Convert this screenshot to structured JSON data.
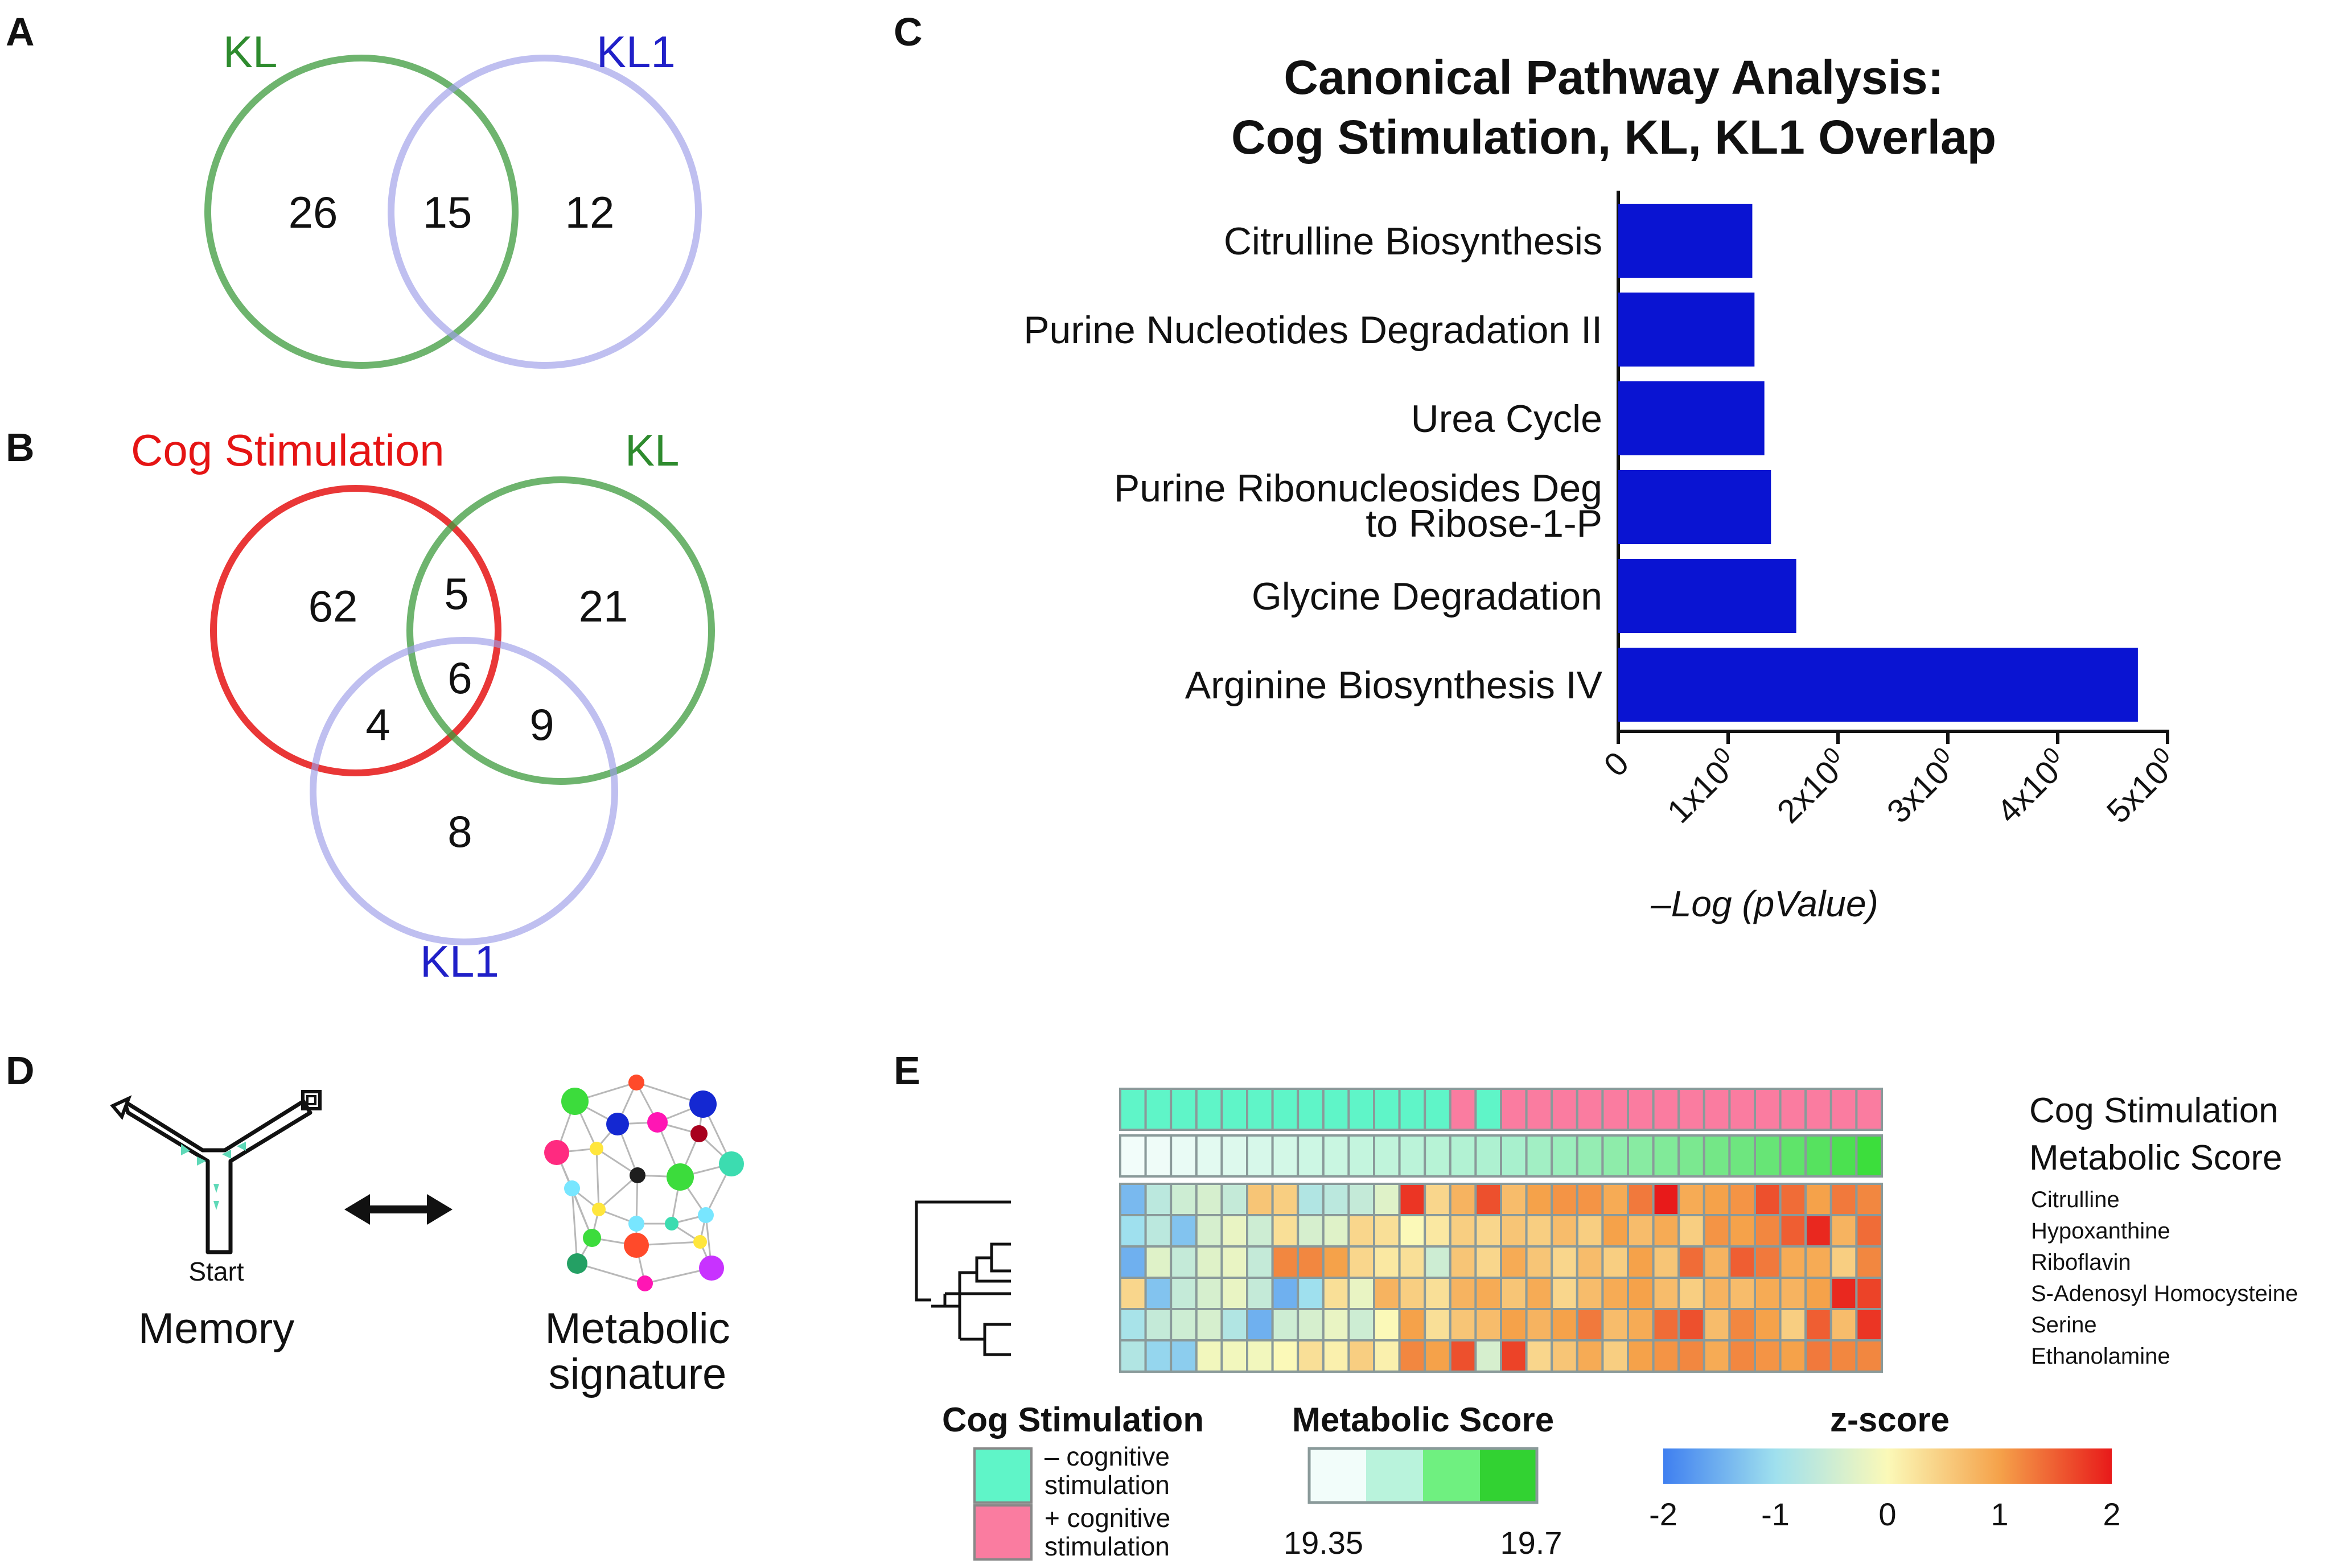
{
  "panels": {
    "a": "A",
    "b": "B",
    "c": "C",
    "d": "D",
    "e": "E"
  },
  "colors": {
    "kl": "#2e8b2e",
    "kl1": "#2020c8",
    "cog": "#e01010",
    "bar": "#0a14d2"
  },
  "venn_a": {
    "label_kl": "KL",
    "label_kl1": "KL1",
    "kl_only": "26",
    "overlap": "15",
    "kl1_only": "12"
  },
  "venn_b": {
    "label_cog": "Cog Stimulation",
    "label_kl": "KL",
    "label_kl1": "KL1",
    "cog_only": "62",
    "cog_kl": "5",
    "kl_only": "21",
    "all": "6",
    "cog_kl1": "4",
    "kl_kl1": "9",
    "kl1_only": "8"
  },
  "chart_data": {
    "type": "bar",
    "orientation": "horizontal",
    "title_line1": "Canonical Pathway Analysis:",
    "title_line2": "Cog Stimulation, KL, KL1 Overlap",
    "xlabel": "–Log (pValue)",
    "ylabel": "",
    "xlim": [
      0,
      5
    ],
    "categories": [
      "Citrulline Biosynthesis",
      "Purine Nucleotides Degradation II",
      "Urea Cycle",
      "Purine Ribonucleosides Deg|to Ribose-1-P",
      "Glycine Degradation",
      "Arginine Biosynthesis IV"
    ],
    "values": [
      1.22,
      1.24,
      1.33,
      1.39,
      1.62,
      4.73
    ],
    "ticks": [
      {
        "base": "0",
        "exp": ""
      },
      {
        "base": "1x10",
        "exp": "0"
      },
      {
        "base": "2x10",
        "exp": "0"
      },
      {
        "base": "3x10",
        "exp": "0"
      },
      {
        "base": "4x10",
        "exp": "0"
      },
      {
        "base": "5x10",
        "exp": "0"
      }
    ]
  },
  "panel_d": {
    "start": "Start",
    "memory": "Memory",
    "meta_line1": "Metabolic",
    "meta_line2": "signature"
  },
  "heatmap": {
    "track_cog": "Cog Stimulation",
    "track_meta": "Metabolic Score",
    "cog_groups": [
      0,
      0,
      0,
      0,
      0,
      0,
      0,
      0,
      0,
      0,
      0,
      0,
      0,
      1,
      0,
      1,
      1,
      1,
      1,
      1,
      1,
      1,
      1,
      1,
      1,
      1,
      1,
      1,
      1,
      1
    ],
    "meta_scores": [
      0.0,
      0.02,
      0.06,
      0.1,
      0.14,
      0.18,
      0.21,
      0.25,
      0.28,
      0.31,
      0.34,
      0.37,
      0.4,
      0.43,
      0.46,
      0.5,
      0.53,
      0.56,
      0.59,
      0.62,
      0.65,
      0.68,
      0.71,
      0.74,
      0.77,
      0.8,
      0.84,
      0.88,
      0.93,
      1.0
    ],
    "rows": [
      "Citrulline",
      "Hypoxanthine",
      "Riboflavin",
      "S-Adenosyl Homocysteine",
      "Serine",
      "Ethanolamine"
    ],
    "z": [
      [
        -1.4,
        -0.7,
        -0.5,
        -0.4,
        -0.6,
        0.6,
        0.5,
        -0.8,
        -0.7,
        -0.6,
        -0.3,
        1.8,
        0.4,
        0.8,
        1.6,
        0.7,
        1.0,
        1.1,
        1.1,
        0.9,
        1.3,
        2.0,
        0.9,
        1.0,
        1.1,
        1.6,
        1.4,
        1.0,
        1.3,
        1.2
      ],
      [
        -1.0,
        -0.7,
        -1.3,
        -0.4,
        -0.2,
        -0.5,
        0.3,
        -0.4,
        -0.3,
        0.4,
        0.3,
        0.0,
        0.2,
        0.5,
        0.4,
        0.6,
        0.5,
        0.7,
        0.5,
        1.0,
        0.7,
        0.9,
        0.5,
        1.1,
        1.0,
        1.2,
        1.5,
        1.9,
        0.8,
        1.4
      ],
      [
        -1.5,
        -0.3,
        -0.6,
        -0.3,
        -0.2,
        -0.6,
        1.2,
        1.2,
        1.0,
        0.4,
        0.2,
        0.3,
        -0.5,
        0.6,
        0.4,
        0.9,
        0.6,
        0.4,
        0.7,
        0.5,
        1.0,
        0.6,
        1.4,
        0.8,
        1.5,
        1.3,
        0.9,
        0.9,
        0.5,
        1.2
      ],
      [
        0.4,
        -1.3,
        -0.6,
        -0.4,
        -0.2,
        -0.6,
        -1.5,
        -1.0,
        0.3,
        -0.2,
        0.8,
        0.5,
        0.3,
        0.8,
        0.9,
        0.6,
        0.9,
        0.4,
        0.7,
        0.9,
        1.0,
        0.7,
        0.5,
        0.8,
        0.7,
        0.9,
        0.8,
        1.0,
        1.9,
        1.7
      ],
      [
        -0.9,
        -0.6,
        -0.5,
        -0.4,
        -0.8,
        -1.5,
        -0.5,
        -0.4,
        -0.2,
        -0.5,
        0.0,
        1.0,
        0.3,
        0.6,
        0.7,
        1.0,
        0.8,
        1.0,
        1.3,
        0.7,
        0.9,
        1.4,
        1.6,
        0.7,
        1.2,
        1.0,
        0.5,
        1.5,
        0.7,
        1.8
      ],
      [
        -0.8,
        -1.1,
        -1.2,
        -0.1,
        -0.1,
        -0.1,
        0.0,
        0.3,
        0.1,
        0.5,
        0.1,
        1.2,
        1.0,
        1.6,
        -0.4,
        1.7,
        0.4,
        0.6,
        0.9,
        0.5,
        1.0,
        1.1,
        1.2,
        0.9,
        1.2,
        1.1,
        1.0,
        1.3,
        1.2,
        1.2
      ]
    ]
  },
  "legend": {
    "cog_title": "Cog Stimulation",
    "minus_line1": "– cognitive",
    "minus_line2": "stimulation",
    "plus_line1": "+ cognitive",
    "plus_line2": "stimulation",
    "meta_title": "Metabolic Score",
    "meta_min": "19.35",
    "meta_max": "19.7",
    "z_title": "z-score",
    "z_ticks": [
      "-2",
      "-1",
      "0",
      "1",
      "2"
    ]
  }
}
